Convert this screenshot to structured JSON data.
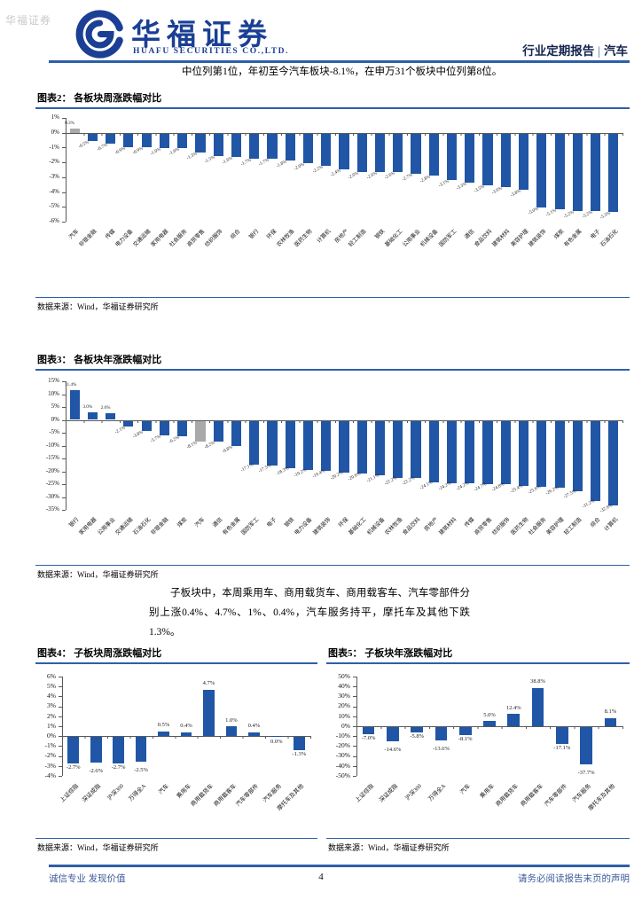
{
  "watermark": "华福证券",
  "header": {
    "brand_cn": "华福证券",
    "brand_en": "HUAFU SECURITIES CO.,LTD.",
    "report_type": "行业定期报告",
    "separator": "|",
    "industry": "汽车"
  },
  "intro_text": "中位列第1位，年初至今汽车板块-8.1%，在申万31个板块中位列第8位。",
  "body_text": "子板块中，本周乘用车、商用载货车、商用载客车、汽车零部件分别上涨0.4%、4.7%、1%、0.4%，汽车服务持平，摩托车及其他下跌1.3%。",
  "source_note": "数据来源：Wind，华福证券研究所",
  "footer": {
    "left": "诚信专业  发现价值",
    "page": "4",
    "right": "请务必阅读报告末页的声明"
  },
  "colors": {
    "bar_blue": "#2056A5",
    "bar_gray": "#A9A9A9",
    "brand_blue": "#1A3F94",
    "rule_blue": "#2E5FA8"
  },
  "chart_data": [
    {
      "id": "fig2",
      "type": "bar",
      "title": "图表2： 各板块周涨跌幅对比",
      "ylim": [
        -6,
        1
      ],
      "yticks": [
        "1%",
        "0%",
        "-1%",
        "-2%",
        "-3%",
        "-4%",
        "-5%",
        "-6%"
      ],
      "categories": [
        "汽车",
        "非银金融",
        "传媒",
        "电力设备",
        "交通运输",
        "家用电器",
        "社会服务",
        "商贸零售",
        "纺织服饰",
        "综合",
        "银行",
        "环保",
        "农林牧渔",
        "医药生物",
        "计算机",
        "房地产",
        "轻工制造",
        "钢铁",
        "基础化工",
        "公用事业",
        "机械设备",
        "国防军工",
        "通信",
        "食品饮料",
        "建筑材料",
        "美容护理",
        "建筑装饰",
        "煤炭",
        "有色金属",
        "电子",
        "石油石化"
      ],
      "values": [
        0.3,
        -0.5,
        -0.7,
        -0.9,
        -0.9,
        -1.0,
        -1.0,
        -1.3,
        -1.5,
        -1.6,
        -1.7,
        -1.7,
        -1.8,
        -2.0,
        -2.2,
        -2.4,
        -2.6,
        -2.6,
        -2.6,
        -2.7,
        -2.8,
        -3.1,
        -3.3,
        -3.5,
        -3.6,
        -3.8,
        -5.0,
        -5.1,
        -5.2,
        -5.2,
        -5.3
      ],
      "highlight_index": 0,
      "legend": null,
      "grid": false
    },
    {
      "id": "fig3",
      "type": "bar",
      "title": "图表3： 各板块年涨跌幅对比",
      "ylim": [
        -35,
        15
      ],
      "yticks": [
        "15%",
        "10%",
        "5%",
        "0%",
        "-5%",
        "-10%",
        "-15%",
        "-20%",
        "-25%",
        "-30%",
        "-35%"
      ],
      "categories": [
        "银行",
        "家用电器",
        "公用事业",
        "交通运输",
        "石油石化",
        "非银金融",
        "煤炭",
        "汽车",
        "通信",
        "有色金属",
        "国防军工",
        "电子",
        "钢铁",
        "电力设备",
        "建筑装饰",
        "环保",
        "基础化工",
        "机械设备",
        "农林牧渔",
        "食品饮料",
        "房地产",
        "建筑材料",
        "传媒",
        "商贸零售",
        "纺织服饰",
        "医药生物",
        "社会服务",
        "美容护理",
        "轻工制造",
        "综合",
        "计算机"
      ],
      "values": [
        11.4,
        3.0,
        2.6,
        -2.1,
        -3.8,
        -5.7,
        -6.2,
        -8.1,
        -8.2,
        -9.8,
        -17.1,
        -17.5,
        -18.3,
        -19.2,
        -19.4,
        -20.2,
        -20.6,
        -21.1,
        -22.2,
        -22.2,
        -24.1,
        -24.2,
        -24.2,
        -24.7,
        -24.8,
        -25.4,
        -25.6,
        -26.2,
        -27.5,
        -31.2,
        -32.9
      ],
      "highlight_index": 7,
      "legend": null,
      "grid": false
    },
    {
      "id": "fig4",
      "type": "bar",
      "title": "图表4： 子板块周涨跌幅对比",
      "ylim": [
        -4,
        6
      ],
      "yticks": [
        "6%",
        "5%",
        "4%",
        "3%",
        "2%",
        "1%",
        "0%",
        "-1%",
        "-2%",
        "-3%",
        "-4%"
      ],
      "categories": [
        "上证综指",
        "深证成指",
        "沪深300",
        "万得全A",
        "汽车",
        "乘用车",
        "商用载货车",
        "商用载客车",
        "汽车零部件",
        "汽车服务",
        "摩托车及其他"
      ],
      "values": [
        -2.7,
        -2.6,
        -2.7,
        -2.5,
        0.5,
        0.4,
        4.7,
        1.0,
        0.4,
        0.0,
        -1.3
      ],
      "highlight_index": -1,
      "legend": null,
      "grid": false
    },
    {
      "id": "fig5",
      "type": "bar",
      "title": "图表5： 子板块年涨跌幅对比",
      "ylim": [
        -50,
        50
      ],
      "yticks": [
        "50%",
        "40%",
        "30%",
        "20%",
        "10%",
        "0%",
        "-10%",
        "-20%",
        "-30%",
        "-40%",
        "-50%"
      ],
      "categories": [
        "上证综指",
        "深证成指",
        "沪深300",
        "万得全A",
        "汽车",
        "乘用车",
        "商用载货车",
        "商用载客车",
        "汽车零部件",
        "汽车服务",
        "摩托车及其他"
      ],
      "values": [
        -7.0,
        -14.6,
        -5.8,
        -13.6,
        -8.1,
        5.0,
        12.4,
        38.8,
        -17.1,
        -37.7,
        8.1
      ],
      "highlight_index": -1,
      "legend": null,
      "grid": false
    }
  ]
}
